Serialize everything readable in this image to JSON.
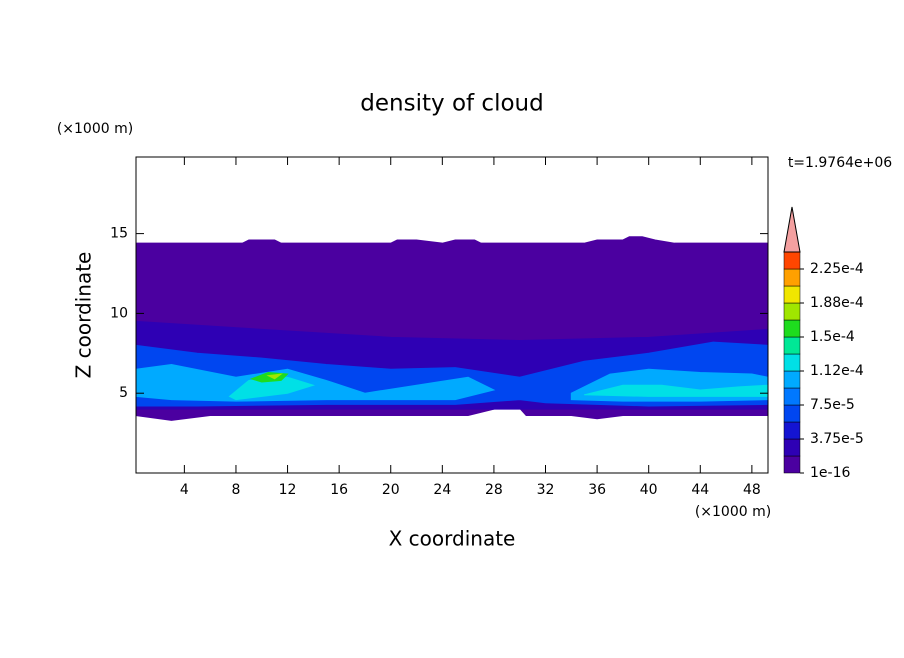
{
  "chart_data": {
    "type": "contour",
    "title": "density of cloud",
    "x_label": "X coordinate",
    "y_label": "Z coordinate",
    "x_unit": "(×1000 m)",
    "y_unit": "(×1000 m)",
    "time_label": "t=1.9764e+06",
    "xlim": [
      0.25,
      49.25
    ],
    "ylim": [
      0,
      19.8
    ],
    "xticks": [
      4,
      8,
      12,
      16,
      20,
      24,
      28,
      32,
      36,
      40,
      44,
      48
    ],
    "yticks": [
      5,
      10,
      15
    ],
    "levels": [
      1e-16,
      1.875e-05,
      3.75e-05,
      5.625e-05,
      7.5e-05,
      9.375e-05,
      0.0001125,
      0.00013125,
      0.00015,
      0.00016875,
      0.0001875,
      0.00020625,
      0.000225,
      0.00024375
    ],
    "colors": [
      "#4b00a0",
      "#2e00b4",
      "#1414d2",
      "#0046f0",
      "#0078ff",
      "#00aaff",
      "#00e0e6",
      "#00e896",
      "#1edc1e",
      "#a0e600",
      "#f0e600",
      "#ffa000",
      "#ff4600"
    ],
    "extend_color": "#f4a0a0",
    "cbar_ticks": [
      {
        "value": 1e-16,
        "label": "1e-16"
      },
      {
        "value": 3.75e-05,
        "label": "3.75e-5"
      },
      {
        "value": 7.5e-05,
        "label": "7.5e-5"
      },
      {
        "value": 0.0001125,
        "label": "1.12e-4"
      },
      {
        "value": 0.00015,
        "label": "1.5e-4"
      },
      {
        "value": 0.0001875,
        "label": "1.88e-4"
      },
      {
        "value": 0.000225,
        "label": "2.25e-4"
      }
    ],
    "regions": [
      {
        "level": 0,
        "x": [
          0.25,
          8.5,
          9,
          11,
          11.5,
          20,
          20.5,
          22,
          24,
          25,
          26.5,
          27,
          35,
          36,
          38,
          38.5,
          39.5,
          40.5,
          42,
          49.25,
          49.25,
          38,
          36,
          34,
          30.5,
          29.5,
          28,
          26,
          6,
          3,
          0.25
        ],
        "z": [
          14.4,
          14.4,
          14.6,
          14.6,
          14.4,
          14.4,
          14.6,
          14.6,
          14.4,
          14.6,
          14.6,
          14.4,
          14.4,
          14.6,
          14.6,
          14.8,
          14.8,
          14.6,
          14.4,
          14.4,
          3.6,
          3.6,
          3.4,
          3.6,
          3.6,
          4.5,
          4.0,
          3.6,
          3.6,
          3.3,
          3.6
        ]
      },
      {
        "level": 1,
        "x": [
          0.25,
          10,
          20,
          30,
          40,
          49.25,
          49.25,
          0.25
        ],
        "z": [
          9.5,
          9,
          8.5,
          8.3,
          8.5,
          9,
          4,
          4
        ]
      },
      {
        "level": 3,
        "x": [
          0.25,
          5,
          10,
          15,
          20,
          25,
          30,
          35,
          40,
          45,
          49.25,
          49.25,
          40,
          32,
          30,
          25,
          15,
          5,
          0.25
        ],
        "z": [
          8,
          7.5,
          7.2,
          6.8,
          6.5,
          6.6,
          6,
          7,
          7.5,
          8.2,
          8,
          4.3,
          4.2,
          4.4,
          4.6,
          4.3,
          4.3,
          4.2,
          4.2
        ]
      },
      {
        "level": 5,
        "x": [
          0.25,
          3,
          8,
          12,
          15,
          18,
          22,
          26,
          28,
          25,
          20,
          15,
          8,
          3,
          0.25
        ],
        "z": [
          6.5,
          6.8,
          6,
          6.5,
          5.8,
          5,
          5.5,
          6,
          5.2,
          4.6,
          4.6,
          4.6,
          4.5,
          4.6,
          4.8
        ]
      },
      {
        "level": 5,
        "x": [
          34,
          37,
          40,
          44,
          48,
          49.25,
          49.25,
          44,
          38,
          34
        ],
        "z": [
          5,
          6.2,
          6.5,
          6.3,
          6.2,
          6,
          4.6,
          4.5,
          4.5,
          4.6
        ]
      },
      {
        "level": 6,
        "x": [
          7.5,
          9,
          12,
          14,
          12,
          8
        ],
        "z": [
          4.8,
          5.8,
          6,
          5.5,
          5,
          4.6
        ]
      },
      {
        "level": 6,
        "x": [
          35,
          38,
          41,
          44,
          47,
          49.25,
          49.25,
          40
        ],
        "z": [
          4.9,
          5.5,
          5.5,
          5.2,
          5.4,
          5.5,
          4.8,
          4.8
        ]
      },
      {
        "level": 8,
        "x": [
          9.2,
          10.5,
          12,
          11.5,
          10
        ],
        "z": [
          5.9,
          6.3,
          6.2,
          5.8,
          5.7
        ]
      },
      {
        "level": 9,
        "x": [
          10.5,
          11.5,
          11
        ],
        "z": [
          6.1,
          6.2,
          5.9
        ]
      }
    ]
  }
}
